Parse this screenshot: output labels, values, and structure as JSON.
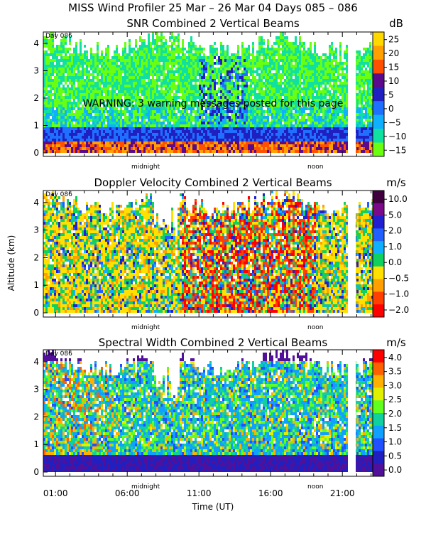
{
  "figure": {
    "title": "MISS Wind Profiler  25 Mar – 26 Mar 04 Days 085 – 086",
    "xlabel": "Time (UT)",
    "ylabel": "Altitude (km)",
    "warning": "WARNING: 3 warning messages posted for this page",
    "day_label": "Day 086",
    "marker_midnight": "midnight",
    "marker_noon": "noon",
    "x_ticks": [
      "01:00",
      "06:00",
      "11:00",
      "16:00",
      "21:00"
    ],
    "y_ticks": [
      "0",
      "1",
      "2",
      "3",
      "4"
    ]
  },
  "chart_data": [
    {
      "type": "heatmap",
      "title": "SNR Combined 2 Vertical Beams",
      "unit": "dB",
      "ylim": [
        0,
        4.8
      ],
      "colorbar_ticks": [
        "25",
        "20",
        "15",
        "10",
        "5",
        "0",
        "−5",
        "−10",
        "−15"
      ],
      "colorbar_colors": [
        "#ffd800",
        "#ffa000",
        "#ff5000",
        "#5a0a8a",
        "#2020c0",
        "#2070ff",
        "#10b0ff",
        "#10e0a0",
        "#6aff10"
      ]
    },
    {
      "type": "heatmap",
      "title": "Doppler Velocity Combined 2 Vertical Beams",
      "unit": "m/s",
      "ylim": [
        0,
        4.8
      ],
      "colorbar_ticks": [
        "10.0",
        "5.0",
        "2.0",
        "1.0",
        "0.0",
        "−0.5",
        "−1.0",
        "−2.0"
      ],
      "colorbar_colors": [
        "#400040",
        "#7a0a8a",
        "#2020d0",
        "#2060ff",
        "#10b0ff",
        "#10d060",
        "#ffe000",
        "#ffa000",
        "#ff4000",
        "#ff0000"
      ]
    },
    {
      "type": "heatmap",
      "title": "Spectral Width Combined 2 Vertical Beams",
      "unit": "m/s",
      "ylim": [
        0,
        4.8
      ],
      "colorbar_ticks": [
        "4.0",
        "3.5",
        "3.0",
        "2.5",
        "2.0",
        "1.5",
        "1.0",
        "0.5",
        "0.0"
      ],
      "colorbar_colors": [
        "#ff0000",
        "#ff6000",
        "#ffb000",
        "#e0f000",
        "#60ff20",
        "#10d0a0",
        "#10a0ff",
        "#2050ff",
        "#2020c0",
        "#50109a"
      ]
    }
  ]
}
